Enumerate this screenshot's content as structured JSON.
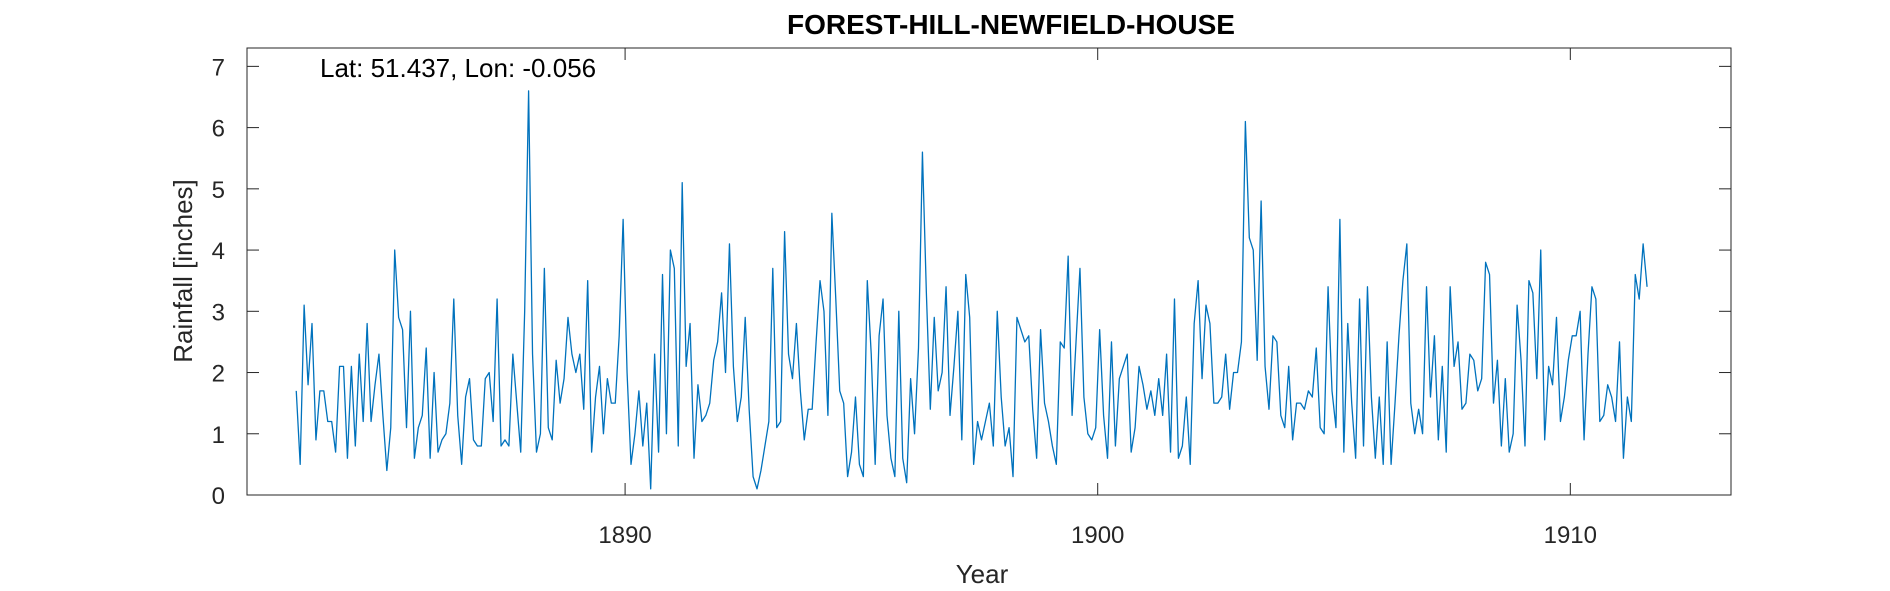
{
  "chart_data": {
    "type": "line",
    "title": "FOREST-HILL-NEWFIELD-HOUSE",
    "xlabel": "Year",
    "ylabel": "Rainfall [inches]",
    "annotation": "Lat: 51.437, Lon: -0.056",
    "xlim": [
      1882,
      1913.4
    ],
    "ylim": [
      0,
      7.3
    ],
    "xticks": [
      1890,
      1900,
      1910
    ],
    "yticks": [
      0,
      1,
      2,
      3,
      4,
      5,
      6,
      7
    ],
    "grid": false,
    "line_color": "#0072BD",
    "x_start": 1883.042,
    "x_step": 0.08333,
    "series": [
      {
        "values": [
          1.7,
          0.5,
          3.1,
          1.8,
          2.8,
          0.9,
          1.7,
          1.7,
          1.2,
          1.2,
          0.7,
          2.1,
          2.1,
          0.6,
          2.1,
          0.8,
          2.3,
          1.2,
          2.8,
          1.2,
          1.8,
          2.3,
          1.3,
          0.4,
          1.1,
          4.0,
          2.9,
          2.7,
          1.1,
          3.0,
          0.6,
          1.1,
          1.3,
          2.4,
          0.6,
          2.0,
          0.7,
          0.9,
          1.0,
          1.5,
          3.2,
          1.3,
          0.5,
          1.6,
          1.9,
          0.9,
          0.8,
          0.8,
          1.9,
          2.0,
          1.2,
          3.2,
          0.8,
          0.9,
          0.8,
          2.3,
          1.5,
          0.7,
          3.0,
          6.6,
          2.3,
          0.7,
          1.0,
          3.7,
          1.1,
          0.9,
          2.2,
          1.5,
          1.9,
          2.9,
          2.3,
          2.0,
          2.3,
          1.4,
          3.5,
          0.7,
          1.6,
          2.1,
          1.0,
          1.9,
          1.5,
          1.5,
          2.6,
          4.5,
          2.0,
          0.5,
          1.0,
          1.7,
          0.8,
          1.5,
          0.1,
          2.3,
          0.7,
          3.6,
          1.0,
          4.0,
          3.7,
          0.8,
          5.1,
          2.1,
          2.8,
          0.6,
          1.8,
          1.2,
          1.3,
          1.5,
          2.2,
          2.5,
          3.3,
          2.0,
          4.1,
          2.1,
          1.2,
          1.6,
          2.9,
          1.4,
          0.3,
          0.1,
          0.4,
          0.8,
          1.2,
          3.7,
          1.1,
          1.2,
          4.3,
          2.3,
          1.9,
          2.8,
          1.7,
          0.9,
          1.4,
          1.4,
          2.5,
          3.5,
          3.0,
          1.3,
          4.6,
          3.2,
          1.7,
          1.5,
          0.3,
          0.7,
          1.6,
          0.5,
          0.3,
          3.5,
          2.3,
          0.5,
          2.6,
          3.2,
          1.3,
          0.6,
          0.3,
          3.0,
          0.6,
          0.2,
          1.9,
          1.0,
          2.4,
          5.6,
          3.3,
          1.4,
          2.9,
          1.7,
          2.0,
          3.4,
          1.3,
          2.1,
          3.0,
          0.9,
          3.6,
          2.9,
          0.5,
          1.2,
          0.9,
          1.2,
          1.5,
          0.8,
          3.0,
          1.6,
          0.8,
          1.1,
          0.3,
          2.9,
          2.7,
          2.5,
          2.6,
          1.4,
          0.6,
          2.7,
          1.5,
          1.2,
          0.8,
          0.5,
          2.5,
          2.4,
          3.9,
          1.3,
          2.5,
          3.7,
          1.6,
          1.0,
          0.9,
          1.1,
          2.7,
          1.3,
          0.6,
          2.5,
          0.8,
          1.9,
          2.1,
          2.3,
          0.7,
          1.1,
          2.1,
          1.8,
          1.4,
          1.7,
          1.3,
          1.9,
          1.3,
          2.3,
          0.7,
          3.2,
          0.6,
          0.8,
          1.6,
          0.5,
          2.8,
          3.5,
          1.9,
          3.1,
          2.8,
          1.5,
          1.5,
          1.6,
          2.3,
          1.4,
          2.0,
          2.0,
          2.5,
          6.1,
          4.2,
          4.0,
          2.2,
          4.8,
          2.1,
          1.4,
          2.6,
          2.5,
          1.3,
          1.1,
          2.1,
          0.9,
          1.5,
          1.5,
          1.4,
          1.7,
          1.6,
          2.4,
          1.1,
          1.0,
          3.4,
          1.7,
          1.1,
          4.5,
          0.7,
          2.8,
          1.5,
          0.6,
          3.2,
          0.8,
          3.4,
          1.6,
          0.6,
          1.6,
          0.5,
          2.5,
          0.5,
          1.5,
          2.6,
          3.5,
          4.1,
          1.5,
          1.0,
          1.4,
          1.0,
          3.4,
          1.6,
          2.6,
          0.9,
          2.1,
          0.7,
          3.4,
          2.1,
          2.5,
          1.4,
          1.5,
          2.3,
          2.2,
          1.7,
          1.9,
          3.8,
          3.6,
          1.5,
          2.2,
          0.8,
          1.9,
          0.7,
          1.0,
          3.1,
          2.2,
          0.8,
          3.5,
          3.3,
          1.9,
          4.0,
          0.9,
          2.1,
          1.8,
          2.9,
          1.2,
          1.6,
          2.2,
          2.6,
          2.6,
          3.0,
          0.9,
          2.3,
          3.4,
          3.2,
          1.2,
          1.3,
          1.8,
          1.6,
          1.2,
          2.5,
          0.6,
          1.6,
          1.2,
          3.6,
          3.2,
          4.1,
          3.4
        ]
      }
    ]
  }
}
